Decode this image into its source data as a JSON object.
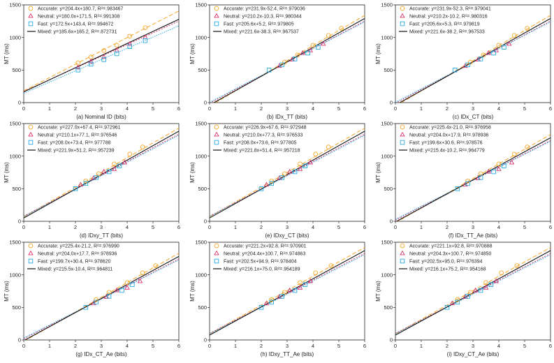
{
  "figure": {
    "ylabel": "MT (ms)",
    "xlim": [
      0,
      6
    ],
    "ylim": [
      0,
      1500
    ],
    "xticks": [
      0,
      1,
      2,
      3,
      4,
      5,
      6
    ],
    "yticks": [
      0,
      500,
      1000,
      1500
    ]
  },
  "series_styles": [
    {
      "name": "Accurate",
      "color": "#f5a623",
      "marker": "circle",
      "dash": "6,3"
    },
    {
      "name": "Neutral",
      "color": "#d6336c",
      "marker": "triangle",
      "dash": "2,2"
    },
    {
      "name": "Fast",
      "color": "#29a9e0",
      "marker": "square",
      "dash": "1.5,1.5"
    },
    {
      "name": "Mixed",
      "color": "#111111",
      "marker": "none",
      "dash": ""
    }
  ],
  "chart_data": [
    {
      "type": "scatter",
      "xlabel": "(a) Nominal ID (bits)",
      "ylabel": "MT (ms)",
      "xlim": [
        0,
        6
      ],
      "ylim": [
        0,
        1500
      ],
      "legend": [
        "Accurate: y=204.4x+180.7, R²=.983467",
        "Neutral: y=180.0x+171.5, R²=.991308",
        "Fast: y=172.5x+143.4, R²=.994672",
        "Mixed: y=185.6x+165.2, R²=.872731"
      ],
      "fits": [
        {
          "name": "Accurate",
          "slope": 204.4,
          "intercept": 180.7
        },
        {
          "name": "Neutral",
          "slope": 180.0,
          "intercept": 171.5
        },
        {
          "name": "Fast",
          "slope": 172.5,
          "intercept": 143.4
        },
        {
          "name": "Mixed",
          "slope": 185.6,
          "intercept": 165.2
        }
      ],
      "series": [
        {
          "name": "Accurate",
          "x": [
            2.1,
            2.6,
            3.1,
            3.6,
            4.1,
            4.7
          ],
          "y": [
            610,
            700,
            800,
            880,
            1020,
            1150
          ]
        },
        {
          "name": "Neutral",
          "x": [
            2.1,
            2.6,
            3.1,
            3.6,
            4.1,
            4.7
          ],
          "y": [
            540,
            630,
            700,
            800,
            900,
            1000
          ]
        },
        {
          "name": "Fast",
          "x": [
            2.1,
            2.6,
            3.1,
            3.6,
            4.1,
            4.7
          ],
          "y": [
            500,
            590,
            660,
            750,
            860,
            950
          ]
        }
      ]
    },
    {
      "type": "scatter",
      "xlabel": "(b) IDx_TT (bits)",
      "ylabel": "MT (ms)",
      "xlim": [
        0,
        6
      ],
      "ylim": [
        0,
        1500
      ],
      "legend": [
        "Accurate: y=231.9x-52.4, R²=.979036",
        "Neutral: y=210.2x-10.3, R²=.980344",
        "Fast: y=205.6x+5.2, R²=.979805",
        "Mixed: y=221.6x-38.3, R²=.967537"
      ],
      "fits": [
        {
          "name": "Accurate",
          "slope": 231.9,
          "intercept": -52.4
        },
        {
          "name": "Neutral",
          "slope": 210.2,
          "intercept": -10.3
        },
        {
          "name": "Fast",
          "slope": 205.6,
          "intercept": 5.2
        },
        {
          "name": "Mixed",
          "slope": 221.6,
          "intercept": -38.3
        }
      ],
      "series": [
        {
          "name": "Accurate",
          "x": [
            2.9,
            3.4,
            4.0,
            4.6,
            5.1
          ],
          "y": [
            620,
            730,
            880,
            1030,
            1140
          ]
        },
        {
          "name": "Neutral",
          "x": [
            2.7,
            3.2,
            3.6,
            3.9,
            4.4
          ],
          "y": [
            560,
            660,
            760,
            800,
            900
          ]
        },
        {
          "name": "Fast",
          "x": [
            2.3,
            2.8,
            3.3,
            3.8,
            4.2
          ],
          "y": [
            500,
            580,
            670,
            760,
            850
          ]
        }
      ]
    },
    {
      "type": "scatter",
      "xlabel": "(c) IDx_CT (bits)",
      "ylabel": "MT (ms)",
      "xlim": [
        0,
        6
      ],
      "ylim": [
        0,
        1500
      ],
      "legend": [
        "Accurate: y=231.9x-52.3, R²=.979041",
        "Neutral: y=210.2x-10.2, R²=.980316",
        "Fast: y=205.6x+5.3, R²=.979819",
        "Mixed: y=221.6x-38.2, R²=.967533"
      ],
      "fits": [
        {
          "name": "Accurate",
          "slope": 231.9,
          "intercept": -52.3
        },
        {
          "name": "Neutral",
          "slope": 210.2,
          "intercept": -10.2
        },
        {
          "name": "Fast",
          "slope": 205.6,
          "intercept": 5.3
        },
        {
          "name": "Mixed",
          "slope": 221.6,
          "intercept": -38.2
        }
      ],
      "series": [
        {
          "name": "Accurate",
          "x": [
            2.9,
            3.4,
            4.0,
            4.6,
            5.1
          ],
          "y": [
            620,
            730,
            880,
            1030,
            1140
          ]
        },
        {
          "name": "Neutral",
          "x": [
            2.7,
            3.2,
            3.6,
            3.9,
            4.4
          ],
          "y": [
            560,
            660,
            760,
            800,
            900
          ]
        },
        {
          "name": "Fast",
          "x": [
            2.3,
            2.8,
            3.3,
            3.8,
            4.2
          ],
          "y": [
            500,
            580,
            670,
            760,
            850
          ]
        }
      ]
    },
    {
      "type": "scatter",
      "xlabel": "(d) IDxy_TT (bits)",
      "ylabel": "MT (ms)",
      "xlim": [
        0,
        6
      ],
      "ylim": [
        0,
        1500
      ],
      "legend": [
        "Accurate: y=227.0x+67.4, R²=.972961",
        "Neutral: y=210.1x+77.1, R²=.976546",
        "Fast: y=208.0x+73.4, R²=.977788",
        "Mixed: y=221.9x+51.2, R²=.957239"
      ],
      "fits": [
        {
          "name": "Accurate",
          "slope": 227.0,
          "intercept": 67.4
        },
        {
          "name": "Neutral",
          "slope": 210.1,
          "intercept": 77.1
        },
        {
          "name": "Fast",
          "slope": 208.0,
          "intercept": 73.4
        },
        {
          "name": "Mixed",
          "slope": 221.9,
          "intercept": 51.2
        }
      ],
      "series": [
        {
          "name": "Accurate",
          "x": [
            2.4,
            2.9,
            3.5,
            4.1,
            4.6
          ],
          "y": [
            620,
            730,
            880,
            1030,
            1140
          ]
        },
        {
          "name": "Neutral",
          "x": [
            2.2,
            2.7,
            3.1,
            3.5,
            3.9
          ],
          "y": [
            560,
            660,
            760,
            800,
            900
          ]
        },
        {
          "name": "Fast",
          "x": [
            2.0,
            2.4,
            2.8,
            3.3,
            3.7
          ],
          "y": [
            500,
            580,
            670,
            760,
            850
          ]
        }
      ]
    },
    {
      "type": "scatter",
      "xlabel": "(e) IDxy_CT (bits)",
      "ylabel": "MT (ms)",
      "xlim": [
        0,
        6
      ],
      "ylim": [
        0,
        1500
      ],
      "legend": [
        "Accurate: y=226.9x+67.6, R²=.972948",
        "Neutral: y=210.0x+77.3, R²=.976533",
        "Fast: y=208.0x+73.6, R²=.977805",
        "Mixed: y=221.8x+51.4, R²=.957218"
      ],
      "fits": [
        {
          "name": "Accurate",
          "slope": 226.9,
          "intercept": 67.6
        },
        {
          "name": "Neutral",
          "slope": 210.0,
          "intercept": 77.3
        },
        {
          "name": "Fast",
          "slope": 208.0,
          "intercept": 73.6
        },
        {
          "name": "Mixed",
          "slope": 221.8,
          "intercept": 51.4
        }
      ],
      "series": [
        {
          "name": "Accurate",
          "x": [
            2.4,
            2.9,
            3.5,
            4.1,
            4.6
          ],
          "y": [
            620,
            730,
            880,
            1030,
            1140
          ]
        },
        {
          "name": "Neutral",
          "x": [
            2.2,
            2.7,
            3.1,
            3.5,
            3.9
          ],
          "y": [
            560,
            660,
            760,
            800,
            900
          ]
        },
        {
          "name": "Fast",
          "x": [
            2.0,
            2.4,
            2.8,
            3.3,
            3.7
          ],
          "y": [
            500,
            580,
            670,
            760,
            850
          ]
        }
      ]
    },
    {
      "type": "scatter",
      "xlabel": "(f) IDx_TT_Ae (bits)",
      "ylabel": "MT (ms)",
      "xlim": [
        0,
        6
      ],
      "ylim": [
        0,
        1500
      ],
      "legend": [
        "Accurate: y=225.4x-21.0, R²=.976958",
        "Neutral: y=204.0x+17.9, R²=.978936",
        "Fast: y=199.6x+30.6, R²=.978576",
        "Mixed: y=215.4x-10.2, R²=.964779"
      ],
      "fits": [
        {
          "name": "Accurate",
          "slope": 225.4,
          "intercept": -21.0
        },
        {
          "name": "Neutral",
          "slope": 204.0,
          "intercept": 17.9
        },
        {
          "name": "Fast",
          "slope": 199.6,
          "intercept": 30.6
        },
        {
          "name": "Mixed",
          "slope": 215.4,
          "intercept": -10.2
        }
      ],
      "series": [
        {
          "name": "Accurate",
          "x": [
            2.8,
            3.3,
            4.0,
            4.6,
            5.1
          ],
          "y": [
            620,
            730,
            880,
            1030,
            1140
          ]
        },
        {
          "name": "Neutral",
          "x": [
            2.7,
            3.2,
            3.6,
            4.0,
            4.5
          ],
          "y": [
            560,
            660,
            760,
            800,
            900
          ]
        },
        {
          "name": "Fast",
          "x": [
            2.4,
            2.8,
            3.3,
            3.8,
            4.2
          ],
          "y": [
            500,
            580,
            670,
            760,
            850
          ]
        }
      ]
    },
    {
      "type": "scatter",
      "xlabel": "(g) IDx_CT_Ae (bits)",
      "ylabel": "MT (ms)",
      "xlim": [
        0,
        6
      ],
      "ylim": [
        0,
        1500
      ],
      "legend": [
        "Accurate: y=225.4x-21.2, R²=.976990",
        "Neutral: y=204.0x+17.7, R²=.978936",
        "Fast: y=199.7x+30.4, R²=.978620",
        "Mixed: y=215.5x-10.4, R²=.964811"
      ],
      "fits": [
        {
          "name": "Accurate",
          "slope": 225.4,
          "intercept": -21.2
        },
        {
          "name": "Neutral",
          "slope": 204.0,
          "intercept": 17.7
        },
        {
          "name": "Fast",
          "slope": 199.7,
          "intercept": 30.4
        },
        {
          "name": "Mixed",
          "slope": 215.5,
          "intercept": -10.4
        }
      ],
      "series": [
        {
          "name": "Accurate",
          "x": [
            2.8,
            3.3,
            4.0,
            4.6,
            5.1
          ],
          "y": [
            620,
            730,
            880,
            1030,
            1140
          ]
        },
        {
          "name": "Neutral",
          "x": [
            2.7,
            3.2,
            3.6,
            4.0,
            4.5
          ],
          "y": [
            560,
            660,
            760,
            800,
            900
          ]
        },
        {
          "name": "Fast",
          "x": [
            2.4,
            2.8,
            3.3,
            3.8,
            4.2
          ],
          "y": [
            500,
            580,
            670,
            760,
            850
          ]
        }
      ]
    },
    {
      "type": "scatter",
      "xlabel": "(h) IDxy_TT_Ae (bits)",
      "ylabel": "MT (ms)",
      "xlim": [
        0,
        6
      ],
      "ylim": [
        0,
        1500
      ],
      "legend": [
        "Accurate: y=221.2x+92.8, R²=.970901",
        "Neutral: y=204.4x+100.7, R²=.974863",
        "Fast: y=202.5x+94.9, R²=.978404",
        "Mixed: y=216.1x+75.0, R²=.954189"
      ],
      "fits": [
        {
          "name": "Accurate",
          "slope": 221.2,
          "intercept": 92.8
        },
        {
          "name": "Neutral",
          "slope": 204.4,
          "intercept": 100.7
        },
        {
          "name": "Fast",
          "slope": 202.5,
          "intercept": 94.9
        },
        {
          "name": "Mixed",
          "slope": 216.1,
          "intercept": 75.0
        }
      ],
      "series": [
        {
          "name": "Accurate",
          "x": [
            2.4,
            2.9,
            3.5,
            4.1,
            4.7
          ],
          "y": [
            620,
            730,
            880,
            1030,
            1140
          ]
        },
        {
          "name": "Neutral",
          "x": [
            2.2,
            2.7,
            3.1,
            3.5,
            3.9
          ],
          "y": [
            560,
            660,
            760,
            800,
            900
          ]
        },
        {
          "name": "Fast",
          "x": [
            2.0,
            2.4,
            2.8,
            3.3,
            3.7
          ],
          "y": [
            500,
            580,
            670,
            760,
            850
          ]
        }
      ]
    },
    {
      "type": "scatter",
      "xlabel": "(i) IDxy_CT_Ae (bits)",
      "ylabel": "MT (ms)",
      "xlim": [
        0,
        6
      ],
      "ylim": [
        0,
        1500
      ],
      "legend": [
        "Accurate: y=221.1x+92.8, R²=.970888",
        "Neutral: y=204.3x+100.7, R²=.974850",
        "Fast: y=202.5x+95.0, R²=.976394",
        "Mixed: y=216.1x+75.2, R²=.954168"
      ],
      "fits": [
        {
          "name": "Accurate",
          "slope": 221.1,
          "intercept": 92.8
        },
        {
          "name": "Neutral",
          "slope": 204.3,
          "intercept": 100.7
        },
        {
          "name": "Fast",
          "slope": 202.5,
          "intercept": 95.0
        },
        {
          "name": "Mixed",
          "slope": 216.1,
          "intercept": 75.2
        }
      ],
      "series": [
        {
          "name": "Accurate",
          "x": [
            2.4,
            2.9,
            3.5,
            4.1,
            4.7
          ],
          "y": [
            620,
            730,
            880,
            1030,
            1140
          ]
        },
        {
          "name": "Neutral",
          "x": [
            2.2,
            2.7,
            3.1,
            3.5,
            3.9
          ],
          "y": [
            560,
            660,
            760,
            800,
            900
          ]
        },
        {
          "name": "Fast",
          "x": [
            2.0,
            2.4,
            2.8,
            3.3,
            3.7
          ],
          "y": [
            500,
            580,
            670,
            760,
            850
          ]
        }
      ]
    }
  ]
}
